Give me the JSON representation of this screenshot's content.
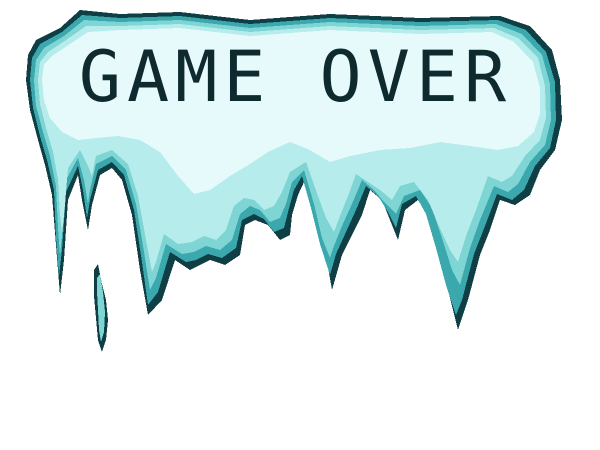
{
  "screen": {
    "title": "GAME OVER",
    "graphic": "icicle-banner",
    "colors": {
      "background": "#ffffff",
      "ice_outline": "#0f3f45",
      "ice_dark": "#3aa8ad",
      "ice_mid": "#7fd4d4",
      "ice_light": "#b6eceb",
      "ice_snow": "#e6fafb",
      "text": "#0f2a2f"
    }
  }
}
